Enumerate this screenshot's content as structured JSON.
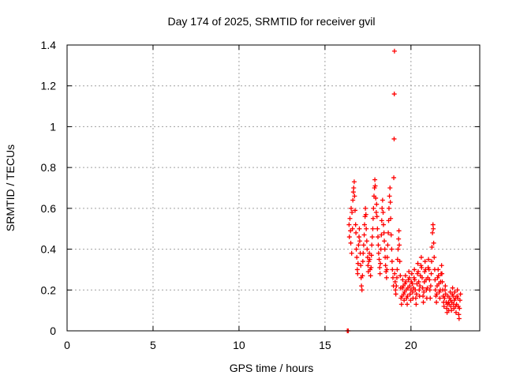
{
  "chart_data": {
    "type": "scatter",
    "title": "Day 174 of 2025, SRMTID for receiver gvil",
    "xlabel": "GPS time / hours",
    "ylabel": "SRMTID / TECUs",
    "xlim": [
      0,
      24
    ],
    "ylim": [
      0,
      1.4
    ],
    "x_ticks": [
      0,
      5,
      10,
      15,
      20
    ],
    "x_tick_labels": [
      "0",
      "5",
      "10",
      "15",
      "20"
    ],
    "y_ticks": [
      0,
      0.2,
      0.4,
      0.6,
      0.8,
      1.0,
      1.2,
      1.4
    ],
    "y_tick_labels": [
      "0",
      "0.2",
      "0.4",
      "0.6",
      "0.8",
      "1",
      "1.2",
      "1.4"
    ],
    "grid": true,
    "marker": "+",
    "series": [
      {
        "name": "SRMTID",
        "color": "#ff0000",
        "points": [
          [
            16.3,
            0.0
          ],
          [
            16.35,
            0.0
          ],
          [
            16.4,
            0.52
          ],
          [
            16.42,
            0.46
          ],
          [
            16.45,
            0.55
          ],
          [
            16.48,
            0.49
          ],
          [
            16.5,
            0.43
          ],
          [
            16.52,
            0.6
          ],
          [
            16.55,
            0.38
          ],
          [
            16.57,
            0.58
          ],
          [
            16.6,
            0.5
          ],
          [
            16.62,
            0.64
          ],
          [
            16.65,
            0.68
          ],
          [
            16.67,
            0.7
          ],
          [
            16.7,
            0.73
          ],
          [
            16.72,
            0.66
          ],
          [
            16.75,
            0.59
          ],
          [
            16.78,
            0.52
          ],
          [
            16.8,
            0.48
          ],
          [
            16.82,
            0.4
          ],
          [
            16.85,
            0.36
          ],
          [
            16.88,
            0.3
          ],
          [
            16.9,
            0.28
          ],
          [
            16.92,
            0.33
          ],
          [
            16.95,
            0.42
          ],
          [
            16.98,
            0.46
          ],
          [
            17.0,
            0.5
          ],
          [
            17.02,
            0.44
          ],
          [
            17.05,
            0.38
          ],
          [
            17.08,
            0.32
          ],
          [
            17.1,
            0.26
          ],
          [
            17.12,
            0.22
          ],
          [
            17.15,
            0.2
          ],
          [
            17.18,
            0.27
          ],
          [
            17.2,
            0.34
          ],
          [
            17.22,
            0.38
          ],
          [
            17.25,
            0.42
          ],
          [
            17.28,
            0.47
          ],
          [
            17.3,
            0.52
          ],
          [
            17.33,
            0.56
          ],
          [
            17.35,
            0.6
          ],
          [
            17.38,
            0.57
          ],
          [
            17.4,
            0.5
          ],
          [
            17.43,
            0.44
          ],
          [
            17.45,
            0.4
          ],
          [
            17.48,
            0.36
          ],
          [
            17.5,
            0.32
          ],
          [
            17.52,
            0.29
          ],
          [
            17.55,
            0.34
          ],
          [
            17.58,
            0.38
          ],
          [
            17.6,
            0.35
          ],
          [
            17.62,
            0.3
          ],
          [
            17.65,
            0.27
          ],
          [
            17.68,
            0.31
          ],
          [
            17.7,
            0.37
          ],
          [
            17.72,
            0.42
          ],
          [
            17.75,
            0.46
          ],
          [
            17.78,
            0.5
          ],
          [
            17.8,
            0.55
          ],
          [
            17.82,
            0.6
          ],
          [
            17.85,
            0.66
          ],
          [
            17.88,
            0.7
          ],
          [
            17.9,
            0.74
          ],
          [
            17.92,
            0.71
          ],
          [
            17.95,
            0.65
          ],
          [
            17.98,
            0.58
          ],
          [
            18.0,
            0.62
          ],
          [
            18.02,
            0.56
          ],
          [
            18.05,
            0.5
          ],
          [
            18.08,
            0.46
          ],
          [
            18.1,
            0.42
          ],
          [
            18.12,
            0.38
          ],
          [
            18.15,
            0.35
          ],
          [
            18.18,
            0.31
          ],
          [
            18.2,
            0.28
          ],
          [
            18.22,
            0.33
          ],
          [
            18.25,
            0.4
          ],
          [
            18.28,
            0.47
          ],
          [
            18.3,
            0.54
          ],
          [
            18.32,
            0.6
          ],
          [
            18.35,
            0.64
          ],
          [
            18.38,
            0.58
          ],
          [
            18.4,
            0.52
          ],
          [
            18.43,
            0.48
          ],
          [
            18.45,
            0.44
          ],
          [
            18.48,
            0.4
          ],
          [
            18.5,
            0.36
          ],
          [
            18.52,
            0.32
          ],
          [
            18.55,
            0.29
          ],
          [
            18.58,
            0.26
          ],
          [
            18.6,
            0.3
          ],
          [
            18.62,
            0.36
          ],
          [
            18.65,
            0.42
          ],
          [
            18.68,
            0.48
          ],
          [
            18.7,
            0.54
          ],
          [
            18.72,
            0.6
          ],
          [
            18.75,
            0.66
          ],
          [
            18.78,
            0.7
          ],
          [
            18.8,
            0.63
          ],
          [
            18.82,
            0.55
          ],
          [
            18.85,
            0.47
          ],
          [
            18.88,
            0.4
          ],
          [
            18.9,
            0.34
          ],
          [
            18.92,
            0.3
          ],
          [
            18.95,
            0.26
          ],
          [
            18.98,
            0.22
          ],
          [
            19.0,
            0.75
          ],
          [
            19.02,
            0.94
          ],
          [
            19.03,
            1.16
          ],
          [
            19.04,
            1.37
          ],
          [
            19.05,
            0.28
          ],
          [
            19.08,
            0.24
          ],
          [
            19.1,
            0.2
          ],
          [
            19.12,
            0.18
          ],
          [
            19.15,
            0.22
          ],
          [
            19.18,
            0.26
          ],
          [
            19.2,
            0.3
          ],
          [
            19.22,
            0.35
          ],
          [
            19.25,
            0.4
          ],
          [
            19.28,
            0.45
          ],
          [
            19.3,
            0.49
          ],
          [
            19.32,
            0.42
          ],
          [
            19.35,
            0.34
          ],
          [
            19.38,
            0.27
          ],
          [
            19.4,
            0.21
          ],
          [
            19.42,
            0.16
          ],
          [
            19.45,
            0.13
          ],
          [
            19.48,
            0.17
          ],
          [
            19.5,
            0.21
          ],
          [
            19.52,
            0.25
          ],
          [
            19.55,
            0.22
          ],
          [
            19.58,
            0.18
          ],
          [
            19.6,
            0.15
          ],
          [
            19.62,
            0.19
          ],
          [
            19.65,
            0.23
          ],
          [
            19.68,
            0.27
          ],
          [
            19.7,
            0.24
          ],
          [
            19.72,
            0.2
          ],
          [
            19.75,
            0.16
          ],
          [
            19.78,
            0.13
          ],
          [
            19.8,
            0.17
          ],
          [
            19.82,
            0.21
          ],
          [
            19.85,
            0.25
          ],
          [
            19.88,
            0.29
          ],
          [
            19.9,
            0.26
          ],
          [
            19.92,
            0.22
          ],
          [
            19.95,
            0.18
          ],
          [
            19.98,
            0.15
          ],
          [
            20.0,
            0.2
          ],
          [
            20.02,
            0.24
          ],
          [
            20.05,
            0.28
          ],
          [
            20.08,
            0.23
          ],
          [
            20.1,
            0.19
          ],
          [
            20.12,
            0.16
          ],
          [
            20.15,
            0.21
          ],
          [
            20.18,
            0.26
          ],
          [
            20.2,
            0.3
          ],
          [
            20.22,
            0.25
          ],
          [
            20.25,
            0.2
          ],
          [
            20.28,
            0.16
          ],
          [
            20.3,
            0.13
          ],
          [
            20.32,
            0.18
          ],
          [
            20.35,
            0.23
          ],
          [
            20.38,
            0.28
          ],
          [
            20.4,
            0.33
          ],
          [
            20.42,
            0.29
          ],
          [
            20.45,
            0.24
          ],
          [
            20.48,
            0.2
          ],
          [
            20.5,
            0.17
          ],
          [
            20.52,
            0.22
          ],
          [
            20.55,
            0.27
          ],
          [
            20.58,
            0.32
          ],
          [
            20.6,
            0.36
          ],
          [
            20.62,
            0.31
          ],
          [
            20.65,
            0.26
          ],
          [
            20.68,
            0.21
          ],
          [
            20.7,
            0.17
          ],
          [
            20.72,
            0.14
          ],
          [
            20.75,
            0.19
          ],
          [
            20.78,
            0.24
          ],
          [
            20.8,
            0.29
          ],
          [
            20.82,
            0.34
          ],
          [
            20.85,
            0.3
          ],
          [
            20.88,
            0.25
          ],
          [
            20.9,
            0.2
          ],
          [
            20.92,
            0.16
          ],
          [
            20.95,
            0.21
          ],
          [
            20.98,
            0.26
          ],
          [
            21.0,
            0.31
          ],
          [
            21.02,
            0.35
          ],
          [
            21.05,
            0.3
          ],
          [
            21.08,
            0.25
          ],
          [
            21.1,
            0.2
          ],
          [
            21.12,
            0.16
          ],
          [
            21.15,
            0.22
          ],
          [
            21.18,
            0.28
          ],
          [
            21.2,
            0.34
          ],
          [
            21.22,
            0.41
          ],
          [
            21.25,
            0.48
          ],
          [
            21.28,
            0.52
          ],
          [
            21.3,
            0.5
          ],
          [
            21.32,
            0.43
          ],
          [
            21.35,
            0.36
          ],
          [
            21.38,
            0.3
          ],
          [
            21.4,
            0.25
          ],
          [
            21.42,
            0.2
          ],
          [
            21.45,
            0.17
          ],
          [
            21.48,
            0.14
          ],
          [
            21.5,
            0.18
          ],
          [
            21.52,
            0.22
          ],
          [
            21.55,
            0.26
          ],
          [
            21.58,
            0.3
          ],
          [
            21.6,
            0.27
          ],
          [
            21.62,
            0.23
          ],
          [
            21.65,
            0.19
          ],
          [
            21.68,
            0.16
          ],
          [
            21.7,
            0.2
          ],
          [
            21.72,
            0.24
          ],
          [
            21.75,
            0.28
          ],
          [
            21.78,
            0.32
          ],
          [
            21.8,
            0.28
          ],
          [
            21.82,
            0.24
          ],
          [
            21.85,
            0.2
          ],
          [
            21.88,
            0.17
          ],
          [
            21.9,
            0.14
          ],
          [
            21.92,
            0.12
          ],
          [
            21.95,
            0.16
          ],
          [
            21.98,
            0.2
          ],
          [
            22.0,
            0.22
          ],
          [
            22.02,
            0.18
          ],
          [
            22.05,
            0.14
          ],
          [
            22.08,
            0.11
          ],
          [
            22.1,
            0.09
          ],
          [
            22.12,
            0.13
          ],
          [
            22.15,
            0.17
          ],
          [
            22.18,
            0.14
          ],
          [
            22.2,
            0.1
          ],
          [
            22.22,
            0.13
          ],
          [
            22.25,
            0.16
          ],
          [
            22.28,
            0.19
          ],
          [
            22.3,
            0.15
          ],
          [
            22.32,
            0.12
          ],
          [
            22.35,
            0.1
          ],
          [
            22.38,
            0.14
          ],
          [
            22.4,
            0.18
          ],
          [
            22.42,
            0.21
          ],
          [
            22.45,
            0.17
          ],
          [
            22.48,
            0.13
          ],
          [
            22.5,
            0.11
          ],
          [
            22.52,
            0.15
          ],
          [
            22.55,
            0.19
          ],
          [
            22.58,
            0.16
          ],
          [
            22.6,
            0.12
          ],
          [
            22.62,
            0.09
          ],
          [
            22.65,
            0.13
          ],
          [
            22.68,
            0.17
          ],
          [
            22.7,
            0.2
          ],
          [
            22.72,
            0.16
          ],
          [
            22.75,
            0.12
          ],
          [
            22.78,
            0.08
          ],
          [
            22.8,
            0.06
          ],
          [
            22.82,
            0.11
          ],
          [
            22.85,
            0.15
          ],
          [
            22.88,
            0.18
          ]
        ]
      }
    ]
  }
}
